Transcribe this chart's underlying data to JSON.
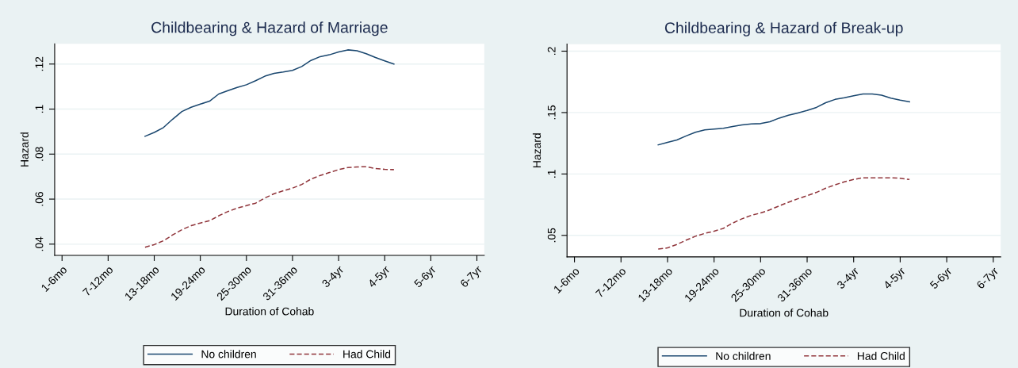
{
  "chart_data": [
    {
      "type": "line",
      "title": "Childbearing & Hazard of Marriage",
      "xlabel": "Duration of Cohab",
      "ylabel": "Hazard",
      "categories": [
        "1-6mo",
        null,
        null,
        null,
        null,
        "7-12mo",
        null,
        null,
        null,
        null,
        "13-18mo",
        null,
        null,
        null,
        null,
        "19-24mo",
        null,
        null,
        null,
        null,
        "25-30mo",
        null,
        null,
        null,
        null,
        "31-36mo",
        null,
        null,
        null,
        null,
        "3-4yr",
        null,
        null,
        null,
        null,
        "4-5yr",
        null,
        null,
        null,
        null,
        "5-6yr",
        null,
        null,
        null,
        null,
        "6-7yr"
      ],
      "ylim": [
        0.035,
        0.129
      ],
      "yticks": [
        {
          "value": 0.04,
          "label": ".04"
        },
        {
          "value": 0.06,
          "label": ".06"
        },
        {
          "value": 0.08,
          "label": ".08"
        },
        {
          "value": 0.1,
          "label": ".1"
        },
        {
          "value": 0.12,
          "label": ".12"
        }
      ],
      "grid": "y",
      "legend": "bottom",
      "series": [
        {
          "name": "No children",
          "color": "#1a476f",
          "line_style": "solid",
          "values": [
            null,
            null,
            null,
            null,
            null,
            null,
            null,
            null,
            null,
            0.0879,
            0.0896,
            0.0918,
            0.0955,
            0.0989,
            0.1008,
            0.1022,
            0.1035,
            0.1067,
            0.1082,
            0.1096,
            0.1108,
            0.1126,
            0.1146,
            0.1159,
            0.1165,
            0.1172,
            0.1189,
            0.1216,
            0.1233,
            0.1241,
            0.1254,
            0.1263,
            0.1259,
            0.1246,
            0.1229,
            0.1214,
            0.12,
            null,
            null,
            null,
            null,
            null,
            null,
            null,
            null,
            null
          ]
        },
        {
          "name": "Had Child",
          "color": "#90353b",
          "line_style": "dashed",
          "values": [
            null,
            null,
            null,
            null,
            null,
            null,
            null,
            null,
            null,
            0.0386,
            0.0398,
            0.0415,
            0.0441,
            0.0464,
            0.0482,
            0.0494,
            0.0504,
            0.0526,
            0.0545,
            0.056,
            0.0571,
            0.0582,
            0.0605,
            0.0624,
            0.0637,
            0.0649,
            0.0665,
            0.0689,
            0.0705,
            0.0718,
            0.0731,
            0.074,
            0.0743,
            0.0744,
            0.0736,
            0.0732,
            0.0731,
            null,
            null,
            null,
            null,
            null,
            null,
            null,
            null,
            null
          ]
        }
      ]
    },
    {
      "type": "line",
      "title": "Childbearing & Hazard of Break-up",
      "xlabel": "Duration of Cohab",
      "ylabel": "Hazard",
      "categories": [
        "1-6mo",
        null,
        null,
        null,
        null,
        "7-12mo",
        null,
        null,
        null,
        null,
        "13-18mo",
        null,
        null,
        null,
        null,
        "19-24mo",
        null,
        null,
        null,
        null,
        "25-30mo",
        null,
        null,
        null,
        null,
        "31-36mo",
        null,
        null,
        null,
        null,
        "3-4yr",
        null,
        null,
        null,
        null,
        "4-5yr",
        null,
        null,
        null,
        null,
        "5-6yr",
        null,
        null,
        null,
        null,
        "6-7yr"
      ],
      "ylim": [
        0.0325,
        0.2057
      ],
      "yticks": [
        {
          "value": 0.05,
          "label": ".05"
        },
        {
          "value": 0.1,
          "label": ".1"
        },
        {
          "value": 0.15,
          "label": ".15"
        },
        {
          "value": 0.2,
          "label": ".2"
        }
      ],
      "grid": "y",
      "legend": "bottom",
      "series": [
        {
          "name": "No children",
          "color": "#1a476f",
          "line_style": "solid",
          "values": [
            null,
            null,
            null,
            null,
            null,
            null,
            null,
            null,
            null,
            0.1237,
            0.1258,
            0.1277,
            0.131,
            0.134,
            0.1359,
            0.1365,
            0.1372,
            0.1387,
            0.1399,
            0.1407,
            0.141,
            0.1425,
            0.1455,
            0.1478,
            0.1497,
            0.1517,
            0.1542,
            0.158,
            0.1607,
            0.162,
            0.1636,
            0.1652,
            0.1652,
            0.1641,
            0.1618,
            0.1601,
            0.1588,
            null,
            null,
            null,
            null,
            null,
            null,
            null,
            null,
            null
          ]
        },
        {
          "name": "Had Child",
          "color": "#90353b",
          "line_style": "dashed",
          "values": [
            null,
            null,
            null,
            null,
            null,
            null,
            null,
            null,
            null,
            0.0388,
            0.0398,
            0.0426,
            0.0461,
            0.0493,
            0.0516,
            0.0534,
            0.0557,
            0.06,
            0.0635,
            0.0663,
            0.0682,
            0.0708,
            0.074,
            0.077,
            0.0798,
            0.0823,
            0.085,
            0.0884,
            0.0911,
            0.0936,
            0.0955,
            0.0969,
            0.0969,
            0.0969,
            0.0969,
            0.0965,
            0.0955,
            null,
            null,
            null,
            null,
            null,
            null,
            null,
            null,
            null
          ]
        }
      ]
    }
  ]
}
